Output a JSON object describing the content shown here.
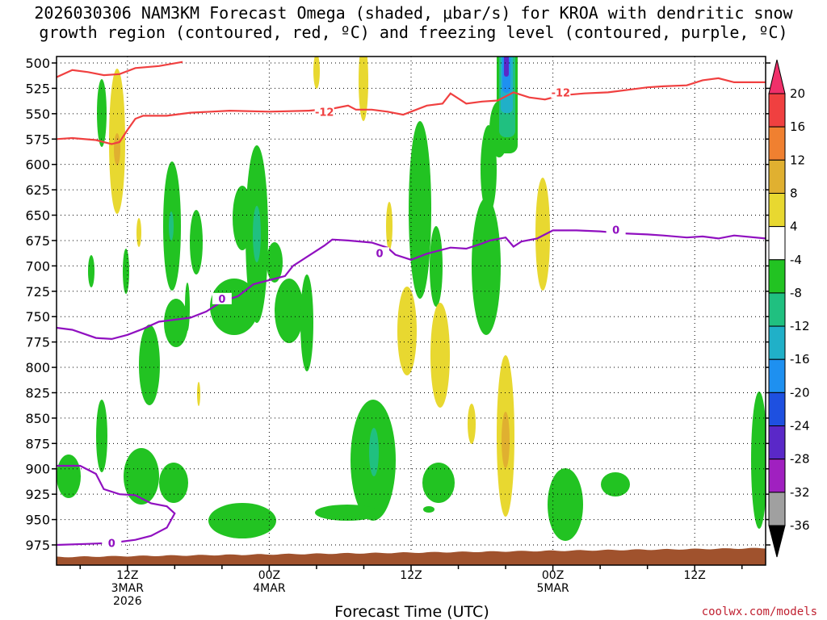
{
  "chart_data": {
    "type": "heatmap",
    "title_line1": "2026030306 NAM3KM Forecast Omega (shaded, μbar/s) for KROA with dendritic snow",
    "title_line2": "growth region (contoured, red, ºC) and freezing level (contoured, purple, ºC)",
    "xlabel": "Forecast Time (UTC)",
    "credit": "coolwx.com/models",
    "y_ticks": [
      500,
      525,
      550,
      575,
      600,
      625,
      650,
      675,
      700,
      725,
      750,
      775,
      800,
      825,
      850,
      875,
      900,
      925,
      950,
      975
    ],
    "x_ticks": [
      {
        "hour": 12,
        "line1": "12Z",
        "line2": "3MAR",
        "line3": "2026"
      },
      {
        "hour": 30,
        "line1": "00Z",
        "line2": "4MAR",
        "line3": ""
      },
      {
        "hour": 48,
        "line1": "12Z",
        "line2": "",
        "line3": ""
      },
      {
        "hour": 66,
        "line1": "00Z",
        "line2": "5MAR",
        "line3": ""
      },
      {
        "hour": 84,
        "line1": "12Z",
        "line2": "",
        "line3": ""
      }
    ],
    "x_range_hours": [
      3,
      93
    ],
    "colorbar": {
      "labels": [
        "20",
        "16",
        "12",
        "8",
        "4",
        "-4",
        "-8",
        "-12",
        "-16",
        "-20",
        "-24",
        "-28",
        "-32",
        "-36"
      ],
      "colors": [
        "#f0306a",
        "#f04040",
        "#f08030",
        "#e0b030",
        "#e8d830",
        "#ffffff",
        "#22c322",
        "#20c080",
        "#20b0c8",
        "#1e90f0",
        "#1e50e0",
        "#5a28c8",
        "#a020c0",
        "#a0a0a0",
        "#000000"
      ]
    },
    "dgz_contour": {
      "label": "-12",
      "color": "#f04040",
      "points": [
        [
          3,
          575
        ],
        [
          5,
          574
        ],
        [
          8,
          576
        ],
        [
          10,
          580
        ],
        [
          11,
          578
        ],
        [
          12,
          566
        ],
        [
          13,
          555
        ],
        [
          14,
          552
        ],
        [
          17,
          552
        ],
        [
          20,
          549
        ],
        [
          25,
          547
        ],
        [
          30,
          548
        ],
        [
          35,
          547
        ],
        [
          38,
          545
        ],
        [
          40,
          542
        ],
        [
          41,
          546
        ],
        [
          43,
          546
        ],
        [
          45,
          548
        ],
        [
          47,
          551
        ],
        [
          48,
          548
        ],
        [
          50,
          542
        ],
        [
          52,
          540
        ],
        [
          53,
          530
        ],
        [
          55,
          540
        ],
        [
          57,
          538
        ],
        [
          59,
          537
        ],
        [
          61,
          529
        ],
        [
          63,
          534
        ],
        [
          65,
          536
        ],
        [
          67,
          532
        ],
        [
          70,
          530
        ],
        [
          73,
          529
        ],
        [
          76,
          526
        ],
        [
          78,
          524
        ],
        [
          80,
          523
        ],
        [
          83,
          522
        ],
        [
          85,
          517
        ],
        [
          87,
          515
        ],
        [
          89,
          519
        ],
        [
          93,
          519
        ]
      ],
      "upper_points": [
        [
          3,
          514
        ],
        [
          5,
          507
        ],
        [
          7,
          509
        ],
        [
          9,
          512
        ],
        [
          11,
          511
        ],
        [
          13,
          505
        ],
        [
          16,
          503
        ],
        [
          19,
          499
        ]
      ],
      "label_positions": [
        [
          37,
          549
        ],
        [
          67,
          530
        ]
      ]
    },
    "freezing_contour": {
      "label": "0",
      "color": "#9010c0",
      "points": [
        [
          3,
          761
        ],
        [
          5,
          763
        ],
        [
          8,
          771
        ],
        [
          10,
          772
        ],
        [
          12,
          768
        ],
        [
          14,
          762
        ],
        [
          16,
          755
        ],
        [
          18,
          753
        ],
        [
          20,
          751
        ],
        [
          22,
          745
        ],
        [
          24,
          735
        ],
        [
          26,
          730
        ],
        [
          28,
          718
        ],
        [
          30,
          714
        ],
        [
          31,
          712
        ],
        [
          32,
          710
        ],
        [
          33,
          700
        ],
        [
          35,
          690
        ],
        [
          37,
          680
        ],
        [
          38,
          674
        ],
        [
          40,
          675
        ],
        [
          43,
          677
        ],
        [
          45,
          682
        ],
        [
          46,
          689
        ],
        [
          48,
          694
        ],
        [
          50,
          688
        ],
        [
          53,
          682
        ],
        [
          55,
          683
        ],
        [
          57,
          678
        ],
        [
          58,
          675
        ],
        [
          60,
          672
        ],
        [
          61,
          681
        ],
        [
          62,
          676
        ],
        [
          64,
          673
        ],
        [
          66,
          665
        ],
        [
          69,
          665
        ],
        [
          72,
          666
        ],
        [
          75,
          668
        ],
        [
          78,
          669
        ],
        [
          80,
          670
        ],
        [
          83,
          672
        ],
        [
          85,
          671
        ],
        [
          87,
          673
        ],
        [
          89,
          670
        ],
        [
          93,
          673
        ]
      ],
      "lower_points": [
        [
          3,
          897
        ],
        [
          6,
          897
        ],
        [
          8,
          905
        ],
        [
          9,
          920
        ],
        [
          11,
          925
        ],
        [
          13,
          926
        ],
        [
          15,
          934
        ],
        [
          17,
          937
        ],
        [
          18,
          944
        ],
        [
          17,
          958
        ],
        [
          15,
          966
        ],
        [
          13,
          970
        ],
        [
          10,
          973
        ],
        [
          7,
          974
        ],
        [
          3,
          975
        ]
      ],
      "label_positions": [
        [
          24,
          733
        ],
        [
          44,
          688
        ],
        [
          74,
          665
        ],
        [
          10,
          974
        ]
      ]
    },
    "terrain_color": "#a0522d"
  }
}
